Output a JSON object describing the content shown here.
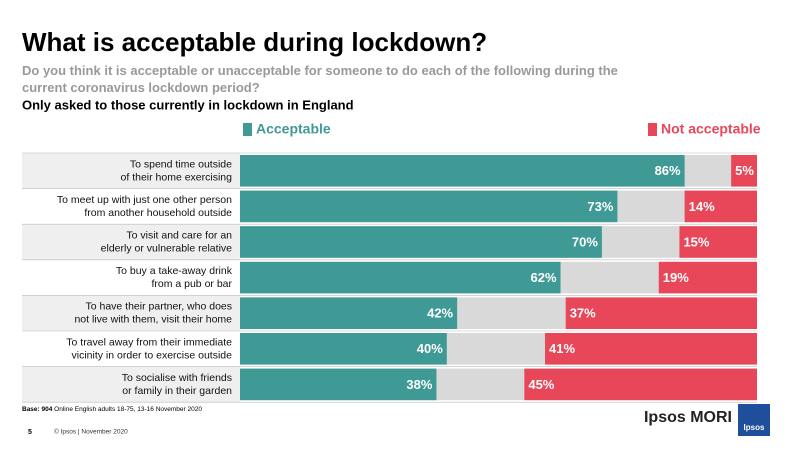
{
  "chart_data": {
    "type": "diverging-bar",
    "title": "What is acceptable during lockdown?",
    "subtitle": "Do you think it is acceptable or unacceptable for someone to do each of the following during the\ncurrent coronavirus lockdown period?",
    "note": "Only asked to those currently in lockdown in England",
    "categories": [
      "To spend time outside\nof their home exercising",
      "To meet up with just one other person\nfrom another household outside",
      "To visit and care for an\nelderly or vulnerable relative",
      "To buy a take-away drink\nfrom a pub or bar",
      "To have their partner, who does\nnot live with them, visit their home",
      "To travel away from their immediate\nvicinity in order to exercise outside",
      "To socialise with friends\nor family in their garden"
    ],
    "series": [
      {
        "name": "Acceptable",
        "color": "#3f9a95",
        "values": [
          86,
          73,
          70,
          62,
          42,
          40,
          38
        ],
        "value_labels": [
          "86%",
          "73%",
          "70%",
          "62%",
          "42%",
          "40%",
          "38%"
        ]
      },
      {
        "name": "Not acceptable",
        "color": "#e8475a",
        "values": [
          5,
          14,
          15,
          19,
          37,
          41,
          45
        ],
        "value_labels": [
          "5%",
          "14%",
          "15%",
          "19%",
          "37%",
          "41%",
          "45%"
        ]
      }
    ]
  },
  "footer": {
    "base_label": "Base: 904",
    "base_text": "Online English adults 18-75, 13-16 November 2020",
    "page": "5",
    "copyright": "© Ipsos | November 2020",
    "brand": "Ipsos MORI",
    "logo": "Ipsos"
  }
}
